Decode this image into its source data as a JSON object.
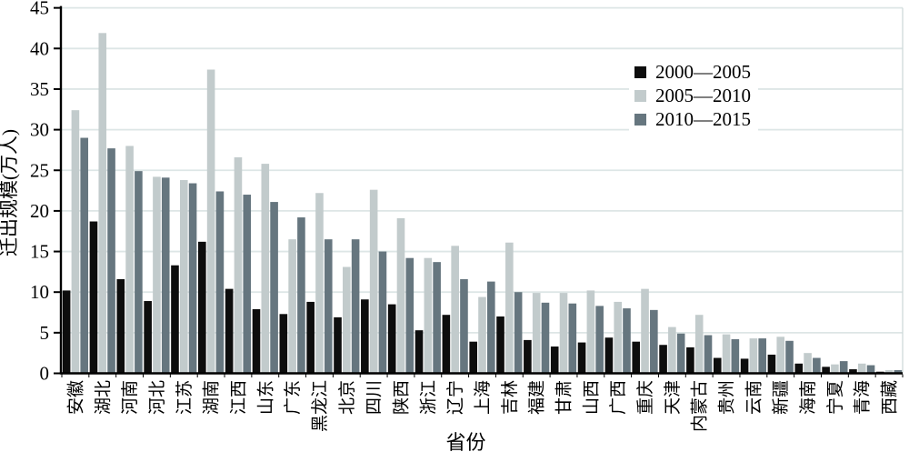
{
  "chart_data": {
    "type": "bar",
    "title": "",
    "xlabel": "省份",
    "ylabel": "迁出规模(万人)",
    "ylim": [
      0,
      45
    ],
    "yticks": [
      0,
      5,
      10,
      15,
      20,
      25,
      30,
      35,
      40,
      45
    ],
    "grid": true,
    "legend_position": "inside-upper-right",
    "categories": [
      "安徽",
      "湖北",
      "河南",
      "河北",
      "江苏",
      "湖南",
      "江西",
      "山东",
      "广东",
      "黑龙江",
      "北京",
      "四川",
      "陕西",
      "浙江",
      "辽宁",
      "上海",
      "吉林",
      "福建",
      "甘肃",
      "山西",
      "广西",
      "重庆",
      "天津",
      "内蒙古",
      "贵州",
      "云南",
      "新疆",
      "海南",
      "宁夏",
      "青海",
      "西藏"
    ],
    "series": [
      {
        "name": "2000—2005",
        "color": "#0d0d0d",
        "values": [
          10.2,
          18.7,
          11.6,
          8.9,
          13.3,
          16.2,
          10.4,
          7.9,
          7.3,
          8.8,
          6.9,
          9.1,
          8.5,
          5.3,
          7.2,
          3.9,
          7.0,
          4.1,
          3.3,
          3.8,
          4.4,
          3.9,
          3.5,
          3.2,
          1.9,
          1.8,
          2.3,
          1.2,
          0.8,
          0.5,
          0.2
        ]
      },
      {
        "name": "2005—2010",
        "color": "#c2cbcc",
        "values": [
          32.4,
          41.9,
          28.0,
          24.2,
          23.8,
          37.4,
          26.6,
          25.8,
          16.5,
          22.2,
          13.1,
          22.6,
          19.1,
          14.2,
          15.7,
          9.4,
          16.1,
          9.9,
          9.9,
          10.2,
          8.8,
          10.4,
          5.7,
          7.2,
          4.8,
          4.3,
          4.5,
          2.5,
          1.1,
          1.2,
          0.4
        ]
      },
      {
        "name": "2010—2015",
        "color": "#66767f",
        "values": [
          29.0,
          27.7,
          24.9,
          24.1,
          23.4,
          22.4,
          22.0,
          21.1,
          19.2,
          16.5,
          16.5,
          15.0,
          14.2,
          13.7,
          11.6,
          11.3,
          10.0,
          8.7,
          8.6,
          8.3,
          8.0,
          7.8,
          4.9,
          4.7,
          4.2,
          4.3,
          4.0,
          1.9,
          1.5,
          1.0,
          0.4
        ]
      }
    ],
    "colors": {
      "gridline": "#dde6e6",
      "axis": "#000000",
      "plot_border_right": "#ccd7d7",
      "background": "#ffffff"
    }
  }
}
